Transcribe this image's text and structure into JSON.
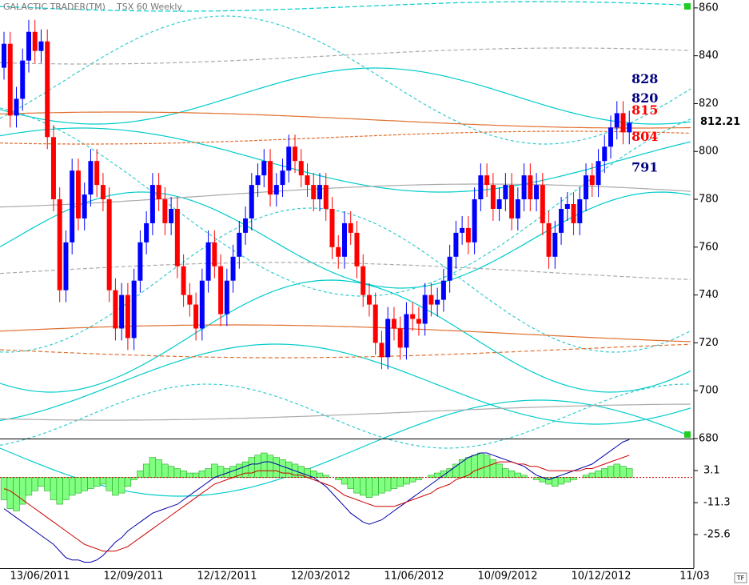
{
  "chart_data": [
    {
      "type": "candlestick",
      "title": "GALACTIC TRADER(TM)",
      "subtitle": "TSX 60 Weekly",
      "up_color": "#0000ff",
      "down_color": "#ff0000",
      "open": [
        835,
        845,
        815,
        822,
        838,
        850,
        842,
        846,
        806,
        780,
        742,
        762,
        792,
        772,
        782,
        796,
        786,
        780,
        742,
        726,
        740,
        722,
        746,
        762,
        770,
        786,
        780,
        770,
        776,
        752,
        740,
        736,
        726,
        746,
        762,
        752,
        732,
        746,
        756,
        766,
        772,
        786,
        790,
        796,
        782,
        786,
        792,
        802,
        796,
        790,
        786,
        780,
        786,
        776,
        760,
        756,
        770,
        766,
        752,
        740,
        736,
        720,
        714,
        730,
        726,
        718,
        732,
        730,
        728,
        740,
        736,
        738,
        746,
        756,
        766,
        768,
        762,
        780,
        790,
        786,
        776,
        780,
        786,
        772,
        780,
        790,
        780,
        786,
        770,
        756,
        766,
        776,
        778,
        770,
        780,
        790,
        786,
        796,
        802,
        810,
        816,
        808
      ],
      "high": [
        850,
        850,
        827,
        843,
        855,
        855,
        851,
        851,
        811,
        785,
        767,
        797,
        797,
        787,
        801,
        801,
        791,
        785,
        747,
        745,
        745,
        751,
        767,
        775,
        791,
        791,
        785,
        781,
        781,
        757,
        745,
        741,
        751,
        767,
        767,
        757,
        751,
        761,
        771,
        777,
        791,
        795,
        801,
        801,
        791,
        797,
        807,
        807,
        801,
        795,
        791,
        791,
        791,
        781,
        765,
        775,
        775,
        771,
        757,
        745,
        741,
        725,
        735,
        735,
        731,
        737,
        737,
        735,
        745,
        745,
        743,
        751,
        761,
        771,
        773,
        773,
        785,
        795,
        795,
        791,
        785,
        791,
        791,
        785,
        795,
        795,
        791,
        791,
        775,
        771,
        781,
        783,
        783,
        785,
        795,
        795,
        801,
        807,
        815,
        821,
        821,
        817
      ],
      "low": [
        830,
        810,
        810,
        817,
        833,
        837,
        837,
        801,
        775,
        737,
        737,
        757,
        767,
        767,
        777,
        781,
        775,
        737,
        721,
        721,
        717,
        717,
        741,
        757,
        765,
        775,
        765,
        765,
        747,
        735,
        731,
        721,
        721,
        741,
        747,
        727,
        727,
        741,
        751,
        761,
        767,
        781,
        785,
        777,
        777,
        781,
        787,
        791,
        785,
        781,
        775,
        775,
        771,
        755,
        751,
        751,
        761,
        747,
        735,
        731,
        715,
        709,
        709,
        721,
        713,
        713,
        725,
        723,
        723,
        731,
        731,
        733,
        741,
        751,
        761,
        757,
        757,
        775,
        781,
        771,
        771,
        775,
        767,
        767,
        775,
        775,
        775,
        765,
        751,
        751,
        761,
        771,
        765,
        765,
        775,
        781,
        781,
        791,
        797,
        805,
        803,
        803
      ],
      "close": [
        845,
        815,
        822,
        838,
        850,
        842,
        846,
        806,
        780,
        742,
        762,
        792,
        772,
        782,
        796,
        786,
        780,
        742,
        726,
        740,
        722,
        746,
        762,
        770,
        786,
        780,
        770,
        776,
        752,
        740,
        736,
        726,
        746,
        762,
        752,
        732,
        746,
        756,
        766,
        772,
        786,
        790,
        796,
        782,
        786,
        792,
        802,
        796,
        790,
        786,
        780,
        786,
        776,
        760,
        756,
        770,
        766,
        752,
        740,
        736,
        720,
        714,
        730,
        726,
        718,
        732,
        730,
        728,
        740,
        736,
        738,
        746,
        756,
        766,
        768,
        762,
        780,
        790,
        786,
        776,
        780,
        786,
        772,
        780,
        790,
        780,
        786,
        770,
        756,
        766,
        776,
        778,
        770,
        780,
        790,
        786,
        796,
        802,
        810,
        816,
        808,
        812
      ],
      "ylim": [
        680,
        863.3
      ],
      "yticks": [
        680,
        700,
        720,
        740,
        760,
        780,
        800,
        820,
        840,
        860
      ],
      "last_price": {
        "value": 812.21,
        "label": "812.21"
      },
      "annotations": [
        {
          "value": 828,
          "color": "#000080"
        },
        {
          "value": 820,
          "color": "#000080"
        },
        {
          "value": 815,
          "color": "#ff0000"
        },
        {
          "value": 804,
          "color": "#ff0000"
        },
        {
          "value": 791,
          "color": "#000080"
        }
      ],
      "x_labels": [
        "13/06/2011",
        "12/09/2011",
        "12/12/2011",
        "12/03/2012",
        "11/06/2012",
        "10/09/2012",
        "10/12/2012",
        "11/03"
      ]
    },
    {
      "type": "macd",
      "histogram": [
        -10,
        -14,
        -15,
        -12,
        -8,
        -6,
        -4,
        -6,
        -10,
        -12,
        -10,
        -8,
        -7,
        -6,
        -5,
        -4,
        -3,
        -6,
        -8,
        -7,
        -4,
        -1,
        3,
        6,
        9,
        8,
        6,
        5,
        4,
        3,
        2,
        2,
        3,
        4,
        6,
        5,
        4,
        5,
        6,
        7,
        9,
        10,
        11,
        10,
        9,
        8,
        7,
        6,
        5,
        4,
        3,
        2,
        1,
        0,
        -1,
        -3,
        -5,
        -7,
        -8,
        -9,
        -8,
        -7,
        -6,
        -5,
        -4,
        -3,
        -2,
        -1,
        0,
        1,
        2,
        3,
        4,
        6,
        8,
        9,
        10,
        11,
        10,
        8,
        6,
        4,
        3,
        2,
        1,
        0,
        -1,
        -2,
        -3,
        -4,
        -3,
        -2,
        -1,
        0,
        1,
        2,
        3,
        4,
        5,
        6,
        5,
        4
      ],
      "hist_color": "#80ff80",
      "series": [
        {
          "color": "#0000aa",
          "values": [
            -14,
            -16,
            -18,
            -20,
            -22,
            -24,
            -26,
            -28,
            -30,
            -33,
            -36,
            -37,
            -37,
            -38,
            -38,
            -37,
            -35,
            -32,
            -29,
            -27,
            -24,
            -22,
            -20,
            -18,
            -16,
            -15,
            -14,
            -13,
            -12,
            -10,
            -8,
            -6,
            -4,
            -2,
            0,
            1,
            2,
            3,
            4,
            5,
            6,
            6,
            7,
            7,
            6,
            5,
            4,
            3,
            2,
            1,
            0,
            -2,
            -4,
            -7,
            -10,
            -13,
            -16,
            -18,
            -20,
            -21,
            -20,
            -19,
            -17,
            -15,
            -13,
            -11,
            -9,
            -7,
            -5,
            -3,
            -1,
            1,
            3,
            5,
            7,
            9,
            10,
            11,
            11,
            10,
            9,
            8,
            7,
            6,
            5,
            3,
            1,
            0,
            -1,
            0,
            1,
            2,
            3,
            4,
            5,
            6,
            8,
            10,
            12,
            14,
            16,
            17
          ]
        },
        {
          "color": "#cc0000",
          "values": [
            -5,
            -6,
            -8,
            -10,
            -12,
            -14,
            -16,
            -18,
            -20,
            -22,
            -24,
            -26,
            -28,
            -30,
            -31,
            -32,
            -33,
            -33,
            -33,
            -32,
            -31,
            -29,
            -27,
            -25,
            -23,
            -21,
            -19,
            -17,
            -15,
            -13,
            -11,
            -9,
            -7,
            -5,
            -3,
            -2,
            -1,
            0,
            1,
            2,
            2,
            3,
            3,
            3,
            3,
            2,
            2,
            1,
            1,
            0,
            -1,
            -2,
            -3,
            -4,
            -6,
            -8,
            -9,
            -10,
            -11,
            -12,
            -13,
            -13,
            -13,
            -13,
            -12,
            -11,
            -10,
            -9,
            -8,
            -7,
            -5,
            -4,
            -3,
            -1,
            0,
            1,
            3,
            4,
            5,
            6,
            7,
            7,
            7,
            6,
            6,
            5,
            5,
            4,
            3,
            3,
            3,
            3,
            3,
            3,
            4,
            4,
            5,
            6,
            7,
            8,
            9,
            10
          ]
        }
      ],
      "ylim": [
        -40.7,
        17.1
      ],
      "yticks": [
        3.1,
        -11.3,
        -25.6
      ],
      "zero_line": 0
    }
  ]
}
